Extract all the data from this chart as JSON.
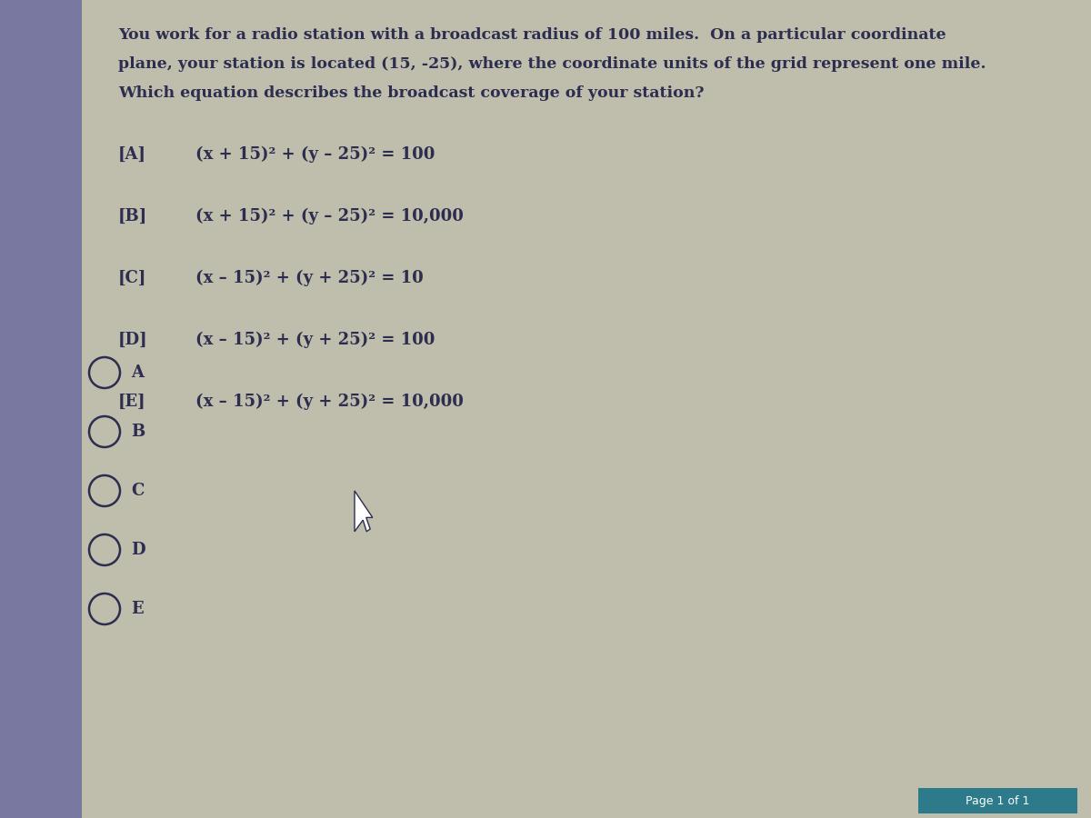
{
  "bg_color": "#bfbdac",
  "left_bar_color": "#7878a0",
  "text_color": "#2d2d50",
  "dark_color": "#2d2d50",
  "question_lines": [
    "You work for a radio station with a broadcast radius of 100 miles.  On a particular coordinate",
    "plane, your station is located (15, -25), where the coordinate units of the grid represent one mile.",
    "Which equation describes the broadcast coverage of your station?"
  ],
  "options_plain": [
    {
      "label": "[A]",
      "equation": "(x + 15)² + (y – 25)² = 100"
    },
    {
      "label": "[B]",
      "equation": "(x + 15)² + (y – 25)² = 10,000"
    },
    {
      "label": "[C]",
      "equation": "(x – 15)² + (y + 25)² = 10"
    },
    {
      "label": "[D]",
      "equation": "(x – 15)² + (y + 25)² = 100"
    },
    {
      "label": "[E]",
      "equation": "(x – 15)² + (y + 25)² = 10,000"
    }
  ],
  "radio_labels": [
    "A",
    "B",
    "C",
    "D",
    "E"
  ],
  "page_text": "Page 1 of 1"
}
